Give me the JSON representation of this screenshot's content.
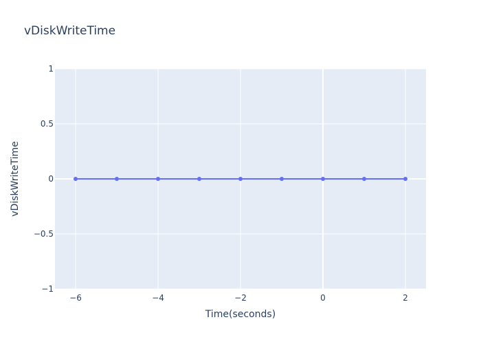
{
  "chart_data": {
    "type": "line",
    "title": "vDiskWriteTime",
    "xlabel": "Time(seconds)",
    "ylabel": "vDiskWriteTime",
    "x": [
      -6,
      -5,
      -4,
      -3,
      -2,
      -1,
      0,
      1,
      2
    ],
    "series": [
      {
        "values": [
          0,
          0,
          0,
          0,
          0,
          0,
          0,
          0,
          0
        ],
        "color": "#636efa",
        "mode": "lines+markers"
      }
    ],
    "xlim": [
      -6.5,
      2.5
    ],
    "ylim": [
      -1,
      1
    ],
    "xticks": [
      -6,
      -4,
      -2,
      0,
      2
    ],
    "xtick_labels": [
      "−6",
      "−4",
      "−2",
      "0",
      "2"
    ],
    "yticks": [
      -1,
      -0.5,
      0,
      0.5,
      1
    ],
    "ytick_labels": [
      "−1",
      "−0.5",
      "0",
      "0.5",
      "1"
    ],
    "grid": true,
    "plot_background": "#e5ecf6",
    "grid_color": "#ffffff",
    "legend": "none"
  }
}
